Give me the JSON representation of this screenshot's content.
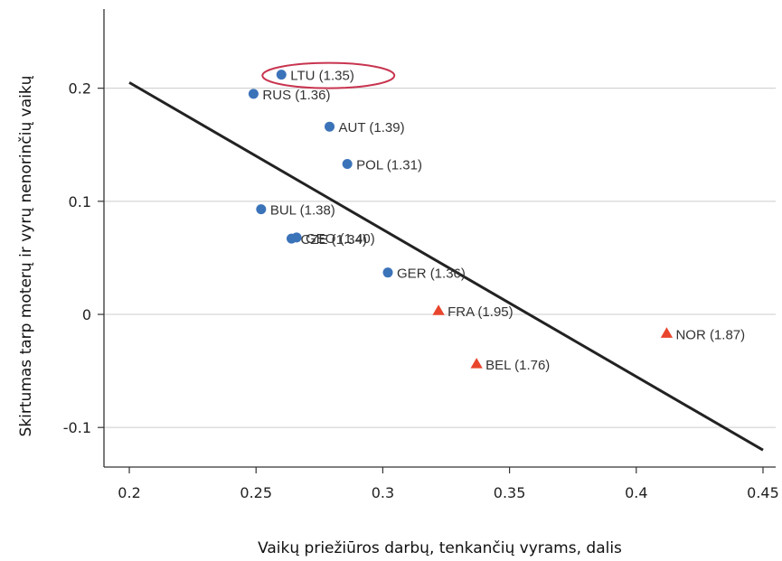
{
  "chart_data": {
    "type": "scatter",
    "xlabel": "Vaikų priežiūros darbų, tenkančių vyrams, dalis",
    "ylabel": "Skirtumas tarp moterų ir vyrų nenorinčių vaikų",
    "xlim": [
      0.19,
      0.455
    ],
    "ylim": [
      -0.135,
      0.27
    ],
    "x_ticks": [
      0.2,
      0.25,
      0.3,
      0.35,
      0.4,
      0.45
    ],
    "x_tick_labels": [
      "0.2",
      "0.25",
      "0.3",
      "0.35",
      "0.4",
      "0.45"
    ],
    "y_ticks": [
      -0.1,
      0,
      0.1,
      0.2
    ],
    "y_tick_labels": [
      "-0.1",
      "0",
      "0.1",
      "0.2"
    ],
    "grid": "horizontal",
    "colors": {
      "circle": "#3b73b9",
      "triangle": "#e8452c",
      "fit_line": "#222222",
      "highlight": "#c8344f",
      "grid": "#cccccc"
    },
    "points": [
      {
        "label": "LTU (1.35)",
        "x": 0.26,
        "y": 0.212,
        "marker": "circle",
        "highlight": true
      },
      {
        "label": "RUS (1.36)",
        "x": 0.249,
        "y": 0.195,
        "marker": "circle"
      },
      {
        "label": "AUT (1.39)",
        "x": 0.279,
        "y": 0.166,
        "marker": "circle"
      },
      {
        "label": "POL (1.31)",
        "x": 0.286,
        "y": 0.133,
        "marker": "circle"
      },
      {
        "label": "BUL (1.38)",
        "x": 0.252,
        "y": 0.093,
        "marker": "circle"
      },
      {
        "label": "CZE (1.34)",
        "x": 0.264,
        "y": 0.067,
        "marker": "circle"
      },
      {
        "label": "GEO (1.40)",
        "x": 0.266,
        "y": 0.068,
        "marker": "circle"
      },
      {
        "label": "GER (1.36)",
        "x": 0.302,
        "y": 0.037,
        "marker": "circle"
      },
      {
        "label": "FRA (1.95)",
        "x": 0.322,
        "y": 0.003,
        "marker": "triangle"
      },
      {
        "label": "BEL (1.76)",
        "x": 0.337,
        "y": -0.044,
        "marker": "triangle"
      },
      {
        "label": "NOR (1.87)",
        "x": 0.412,
        "y": -0.017,
        "marker": "triangle"
      }
    ],
    "fit_line": {
      "x": [
        0.2,
        0.45
      ],
      "y": [
        0.205,
        -0.12
      ]
    }
  }
}
